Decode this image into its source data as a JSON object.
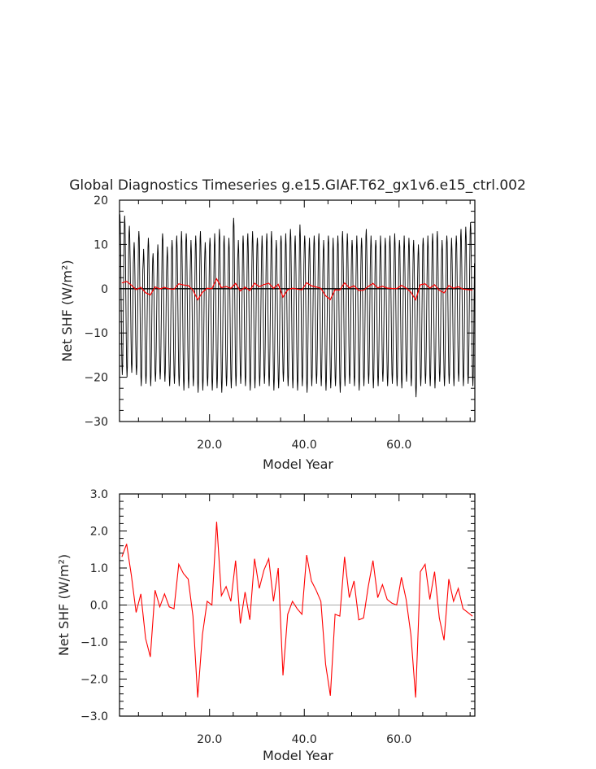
{
  "title": "Global Diagnostics Timeseries g.e15.GIAF.T62_gx1v6.e15_ctrl.002",
  "colors": {
    "monthly": "#000000",
    "annual": "#ff0000",
    "zero_line_bottom": "#aaaaaa"
  },
  "chart_data": [
    {
      "type": "line",
      "xlabel": "Model Year",
      "ylabel": "Net SHF (W/m²)",
      "xlim": [
        1,
        76
      ],
      "ylim": [
        -30,
        20
      ],
      "xticks": [
        "20.0",
        "40.0",
        "60.0"
      ],
      "yticks": [
        "20",
        "10",
        "0",
        "−10",
        "−20",
        "−30"
      ],
      "zero_line": true,
      "series": [
        {
          "role": "monthly",
          "color": "#000000",
          "years_start": 1,
          "years_end": 75,
          "peaks": [
            16.8,
            16.5,
            14.2,
            10.5,
            13.0,
            9.0,
            11.5,
            8.0,
            10.0,
            12.5,
            9.5,
            11.0,
            12.0,
            13.0,
            12.5,
            11.0,
            12.0,
            13.0,
            10.5,
            11.5,
            12.5,
            13.5,
            12.0,
            11.5,
            16.0,
            11.0,
            12.0,
            12.5,
            13.0,
            11.5,
            12.0,
            12.5,
            13.0,
            11.0,
            12.0,
            12.5,
            13.5,
            12.0,
            14.5,
            12.0,
            11.5,
            12.0,
            12.5,
            11.0,
            12.0,
            11.5,
            12.0,
            13.0,
            12.5,
            11.0,
            12.0,
            11.5,
            13.5,
            12.0,
            11.0,
            12.0,
            11.5,
            12.0,
            12.5,
            11.0,
            12.0,
            11.5,
            11.0,
            10.0,
            11.5,
            12.0,
            12.5,
            13.0,
            11.0,
            12.0,
            11.5,
            12.0,
            13.5,
            14.0,
            15.0
          ],
          "troughs": [
            -19.5,
            -20.0,
            -19.0,
            -19.5,
            -22.0,
            -21.5,
            -22.0,
            -21.0,
            -20.5,
            -21.0,
            -22.0,
            -21.5,
            -22.0,
            -23.0,
            -22.5,
            -22.0,
            -23.5,
            -23.0,
            -22.0,
            -23.0,
            -22.5,
            -23.5,
            -22.0,
            -22.5,
            -22.0,
            -21.5,
            -22.0,
            -23.0,
            -22.5,
            -22.0,
            -21.5,
            -22.0,
            -23.0,
            -22.5,
            -21.0,
            -22.0,
            -22.5,
            -23.0,
            -22.0,
            -23.5,
            -22.0,
            -21.5,
            -22.0,
            -23.0,
            -22.5,
            -22.0,
            -23.5,
            -22.0,
            -21.5,
            -22.0,
            -23.0,
            -22.0,
            -21.5,
            -22.5,
            -22.0,
            -21.0,
            -22.0,
            -21.5,
            -22.0,
            -22.5,
            -21.0,
            -22.0,
            -24.5,
            -22.0,
            -21.5,
            -22.0,
            -22.5,
            -21.0,
            -22.0,
            -21.5,
            -22.0,
            -21.0,
            -22.0,
            -21.5,
            -22.0
          ]
        },
        {
          "role": "annual",
          "color": "#ff0000",
          "x": [
            1,
            2,
            3,
            4,
            5,
            6,
            7,
            8,
            9,
            10,
            11,
            12,
            13,
            14,
            15,
            16,
            17,
            18,
            19,
            20,
            21,
            22,
            23,
            24,
            25,
            26,
            27,
            28,
            29,
            30,
            31,
            32,
            33,
            34,
            35,
            36,
            37,
            38,
            39,
            40,
            41,
            42,
            43,
            44,
            45,
            46,
            47,
            48,
            49,
            50,
            51,
            52,
            53,
            54,
            55,
            56,
            57,
            58,
            59,
            60,
            61,
            62,
            63,
            64,
            65,
            66,
            67,
            68,
            69,
            70,
            71,
            72,
            73,
            74,
            75
          ],
          "values": [
            1.3,
            1.65,
            0.8,
            -0.2,
            0.3,
            -0.9,
            -1.4,
            0.4,
            -0.05,
            0.3,
            -0.05,
            -0.1,
            1.1,
            0.85,
            0.7,
            -0.3,
            -2.5,
            -0.8,
            0.1,
            0.0,
            2.25,
            0.25,
            0.5,
            0.1,
            1.2,
            -0.5,
            0.35,
            -0.4,
            1.25,
            0.45,
            0.95,
            1.25,
            0.1,
            1.0,
            -1.9,
            -0.25,
            0.1,
            -0.1,
            -0.25,
            1.35,
            0.65,
            0.4,
            0.1,
            -1.6,
            -2.45,
            -0.25,
            -0.3,
            1.3,
            0.2,
            0.65,
            -0.4,
            -0.35,
            0.5,
            1.2,
            0.2,
            0.55,
            0.15,
            0.05,
            0.0,
            0.75,
            0.15,
            -0.8,
            -2.5,
            0.9,
            1.1,
            0.15,
            0.9,
            -0.35,
            -0.95,
            0.7,
            0.1,
            0.45,
            -0.1,
            -0.2,
            -0.3
          ]
        }
      ]
    },
    {
      "type": "line",
      "xlabel": "Model Year",
      "ylabel": "Net SHF (W/m²)",
      "xlim": [
        1,
        76
      ],
      "ylim": [
        -3.0,
        3.0
      ],
      "xticks": [
        "20.0",
        "40.0",
        "60.0"
      ],
      "yticks": [
        "3.0",
        "2.0",
        "1.0",
        "0.0",
        "−1.0",
        "−2.0",
        "−3.0"
      ],
      "zero_line": true,
      "series": [
        {
          "role": "annual",
          "color": "#ff0000",
          "x": [
            1,
            2,
            3,
            4,
            5,
            6,
            7,
            8,
            9,
            10,
            11,
            12,
            13,
            14,
            15,
            16,
            17,
            18,
            19,
            20,
            21,
            22,
            23,
            24,
            25,
            26,
            27,
            28,
            29,
            30,
            31,
            32,
            33,
            34,
            35,
            36,
            37,
            38,
            39,
            40,
            41,
            42,
            43,
            44,
            45,
            46,
            47,
            48,
            49,
            50,
            51,
            52,
            53,
            54,
            55,
            56,
            57,
            58,
            59,
            60,
            61,
            62,
            63,
            64,
            65,
            66,
            67,
            68,
            69,
            70,
            71,
            72,
            73,
            74,
            75
          ],
          "values": [
            1.3,
            1.65,
            0.8,
            -0.2,
            0.3,
            -0.9,
            -1.4,
            0.4,
            -0.05,
            0.3,
            -0.05,
            -0.1,
            1.1,
            0.85,
            0.7,
            -0.3,
            -2.5,
            -0.8,
            0.1,
            0.0,
            2.25,
            0.25,
            0.5,
            0.1,
            1.2,
            -0.5,
            0.35,
            -0.4,
            1.25,
            0.45,
            0.95,
            1.25,
            0.1,
            1.0,
            -1.9,
            -0.25,
            0.1,
            -0.1,
            -0.25,
            1.35,
            0.65,
            0.4,
            0.1,
            -1.6,
            -2.45,
            -0.25,
            -0.3,
            1.3,
            0.2,
            0.65,
            -0.4,
            -0.35,
            0.5,
            1.2,
            0.2,
            0.55,
            0.15,
            0.05,
            0.0,
            0.75,
            0.15,
            -0.8,
            -2.5,
            0.9,
            1.1,
            0.15,
            0.9,
            -0.35,
            -0.95,
            0.7,
            0.1,
            0.45,
            -0.1,
            -0.2,
            -0.3
          ]
        }
      ]
    }
  ]
}
